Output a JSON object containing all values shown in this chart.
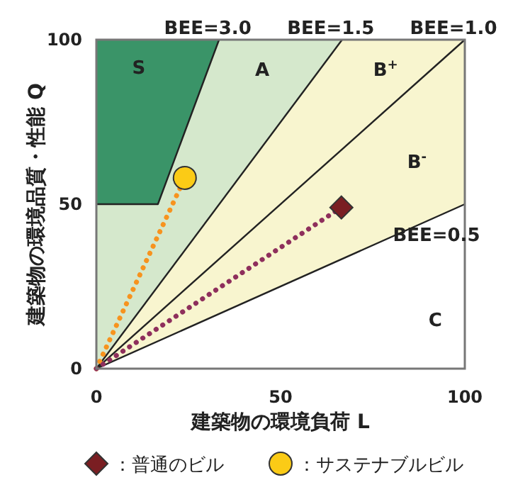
{
  "chart_data": {
    "type": "scatter",
    "xlabel": "建築物の環境負荷 L",
    "ylabel": "建築物の環境品質・性能 Q",
    "xlim": [
      0,
      100
    ],
    "ylim": [
      0,
      100
    ],
    "xticks": [
      0,
      50,
      100
    ],
    "yticks": [
      0,
      50,
      100
    ],
    "grid": false,
    "legend": "bottom",
    "series": [
      {
        "type": "line",
        "color": "#222222",
        "line_style": "solid",
        "x": [
          0,
          16.7,
          33.3
        ],
        "values": [
          50,
          50,
          100
        ]
      },
      {
        "type": "line",
        "color": "#222222",
        "line_style": "solid",
        "x": [
          0,
          66.7
        ],
        "values": [
          0,
          100
        ]
      },
      {
        "type": "line",
        "color": "#222222",
        "line_style": "solid",
        "x": [
          0,
          100
        ],
        "values": [
          0,
          100
        ]
      },
      {
        "type": "line",
        "color": "#222222",
        "line_style": "solid",
        "x": [
          0,
          100
        ],
        "values": [
          0,
          50
        ]
      },
      {
        "type": "line",
        "color": "#f7931e",
        "line_style": "dotted",
        "x": [
          0,
          24
        ],
        "values": [
          0,
          58
        ]
      },
      {
        "type": "line",
        "color": "#8e2f5c",
        "line_style": "dotted",
        "x": [
          0,
          66.5
        ],
        "values": [
          0,
          49
        ]
      },
      {
        "name": "：普通のビル",
        "marker": "diamond",
        "color": "#7a1e22",
        "x": [
          66.5
        ],
        "values": [
          49
        ]
      },
      {
        "name": "：サステナブルビル",
        "marker": "circle",
        "color": "#fbcb16",
        "x": [
          24
        ],
        "values": [
          58
        ]
      }
    ],
    "annotations": [
      {
        "text": "BEE=3.0",
        "x": 33.3,
        "y": 100
      },
      {
        "text": "BEE=1.5",
        "x": 66.7,
        "y": 100
      },
      {
        "text": "BEE=1.0",
        "x": 100,
        "y": 100
      },
      {
        "text": "BEE=0.5",
        "x": 100,
        "y": 50
      },
      "S",
      "A",
      "B$^{+}$",
      "B$^{-}$",
      "C"
    ]
  }
}
